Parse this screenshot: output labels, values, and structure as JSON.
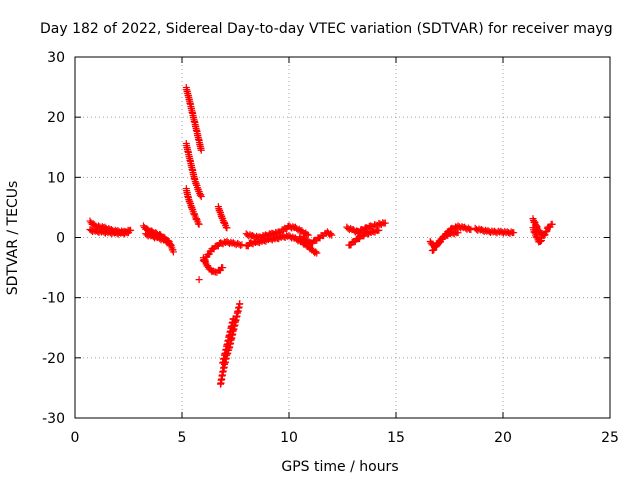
{
  "chart_data": {
    "type": "scatter",
    "title": "Day 182 of 2022, Sidereal Day-to-day VTEC variation (SDTVAR) for receiver mayg",
    "xlabel": "GPS time / hours",
    "ylabel": "SDTVAR / TECUs",
    "xlim": [
      0,
      25
    ],
    "ylim": [
      -30,
      30
    ],
    "xticks": [
      0,
      5,
      10,
      15,
      20,
      25
    ],
    "yticks": [
      -30,
      -20,
      -10,
      0,
      10,
      20,
      30
    ],
    "xtick_labels": [
      "0",
      "5",
      "10",
      "15",
      "20",
      "25"
    ],
    "ytick_labels": [
      "-30",
      "-20",
      "-10",
      "0",
      "10",
      "20",
      "30"
    ],
    "grid": true,
    "marker": "+",
    "color": "#ff0000",
    "segments": [
      {
        "name": "arc-0.7-2.6",
        "points": [
          [
            0.7,
            2.6
          ],
          [
            0.9,
            2.0
          ],
          [
            1.1,
            1.8
          ],
          [
            1.4,
            1.6
          ],
          [
            1.7,
            1.2
          ],
          [
            2.0,
            1.0
          ],
          [
            2.3,
            0.9
          ],
          [
            2.6,
            1.2
          ]
        ]
      },
      {
        "name": "arc-0.7-1.2",
        "points": [
          [
            0.7,
            1.2
          ],
          [
            1.0,
            1.0
          ],
          [
            1.3,
            0.9
          ],
          [
            1.6,
            0.8
          ],
          [
            1.9,
            0.7
          ],
          [
            2.2,
            0.7
          ],
          [
            2.5,
            0.8
          ]
        ]
      },
      {
        "name": "arc-3.2-1.8",
        "points": [
          [
            3.2,
            1.8
          ],
          [
            3.4,
            1.2
          ],
          [
            3.6,
            0.9
          ],
          [
            3.8,
            0.6
          ],
          [
            4.0,
            0.3
          ],
          [
            4.2,
            -0.2
          ],
          [
            4.4,
            -0.8
          ],
          [
            4.5,
            -1.5
          ],
          [
            4.6,
            -2.4
          ]
        ]
      },
      {
        "name": "arc-3.3-0.5",
        "points": [
          [
            3.3,
            0.5
          ],
          [
            3.6,
            0.2
          ],
          [
            3.9,
            -0.1
          ],
          [
            4.2,
            -0.5
          ],
          [
            4.4,
            -1.0
          ]
        ]
      },
      {
        "name": "arc-5.2-24.8",
        "points": [
          [
            5.2,
            24.8
          ],
          [
            5.3,
            23.5
          ],
          [
            5.4,
            22.0
          ],
          [
            5.5,
            20.5
          ],
          [
            5.6,
            19.0
          ],
          [
            5.7,
            17.5
          ],
          [
            5.8,
            16.0
          ],
          [
            5.9,
            14.5
          ]
        ]
      },
      {
        "name": "arc-5.2-15.5",
        "points": [
          [
            5.2,
            15.5
          ],
          [
            5.3,
            14.0
          ],
          [
            5.4,
            12.5
          ],
          [
            5.5,
            11.0
          ],
          [
            5.6,
            9.5
          ],
          [
            5.7,
            8.5
          ],
          [
            5.8,
            7.5
          ],
          [
            5.9,
            6.8
          ]
        ]
      },
      {
        "name": "arc-5.2-8.0",
        "points": [
          [
            5.2,
            8.0
          ],
          [
            5.3,
            6.5
          ],
          [
            5.4,
            5.5
          ],
          [
            5.5,
            4.5
          ],
          [
            5.6,
            3.6
          ],
          [
            5.7,
            2.8
          ],
          [
            5.8,
            2.2
          ]
        ]
      },
      {
        "name": "arc-6.7-5.0",
        "points": [
          [
            6.7,
            5.0
          ],
          [
            6.8,
            4.0
          ],
          [
            6.9,
            3.0
          ],
          [
            7.0,
            2.2
          ],
          [
            7.1,
            1.6
          ]
        ]
      },
      {
        "name": "arc-5.8-7.0",
        "points": [
          [
            5.8,
            -7.0
          ]
        ]
      },
      {
        "name": "arc-6.0-3.5",
        "points": [
          [
            6.0,
            -3.5
          ],
          [
            6.1,
            -4.2
          ],
          [
            6.2,
            -4.8
          ],
          [
            6.3,
            -5.3
          ],
          [
            6.5,
            -5.8
          ],
          [
            6.7,
            -5.6
          ],
          [
            6.9,
            -5.0
          ]
        ]
      },
      {
        "name": "arc-6.0-4.0",
        "points": [
          [
            6.0,
            -4.0
          ],
          [
            6.2,
            -3.0
          ],
          [
            6.4,
            -2.0
          ],
          [
            6.6,
            -1.5
          ],
          [
            6.8,
            -1.0
          ],
          [
            7.1,
            -0.8
          ],
          [
            7.4,
            -1.0
          ],
          [
            7.8,
            -1.2
          ]
        ]
      },
      {
        "name": "arc-6.8-24.5",
        "points": [
          [
            6.8,
            -24.5
          ],
          [
            6.9,
            -22.5
          ],
          [
            7.0,
            -21.0
          ],
          [
            7.1,
            -19.5
          ],
          [
            7.2,
            -18.5
          ],
          [
            7.3,
            -17.0
          ],
          [
            7.4,
            -15.5
          ],
          [
            7.5,
            -14.0
          ],
          [
            7.6,
            -12.5
          ],
          [
            7.7,
            -11.0
          ]
        ]
      },
      {
        "name": "arc-6.9-21.0",
        "points": [
          [
            6.9,
            -21.0
          ],
          [
            7.0,
            -19.5
          ],
          [
            7.1,
            -18.0
          ],
          [
            7.2,
            -16.5
          ],
          [
            7.3,
            -15.0
          ],
          [
            7.4,
            -13.5
          ]
        ]
      },
      {
        "name": "arc-8.0-0.5",
        "points": [
          [
            8.0,
            0.5
          ],
          [
            8.3,
            0.2
          ],
          [
            8.6,
            0.0
          ],
          [
            8.9,
            0.3
          ],
          [
            9.2,
            0.6
          ],
          [
            9.5,
            0.8
          ],
          [
            9.8,
            1.4
          ],
          [
            10.0,
            1.8
          ],
          [
            10.3,
            1.6
          ],
          [
            10.6,
            1.0
          ],
          [
            10.9,
            0.4
          ]
        ]
      },
      {
        "name": "arc-8.0-1.5",
        "points": [
          [
            8.0,
            -1.5
          ],
          [
            8.2,
            -1.0
          ],
          [
            8.5,
            -0.8
          ],
          [
            8.8,
            -0.6
          ],
          [
            9.1,
            -0.3
          ],
          [
            9.4,
            -0.2
          ],
          [
            9.7,
            0.1
          ],
          [
            10.0,
            0.2
          ],
          [
            10.3,
            -0.2
          ],
          [
            10.6,
            -0.8
          ],
          [
            10.9,
            -1.5
          ],
          [
            11.1,
            -2.2
          ],
          [
            11.3,
            -2.6
          ]
        ]
      },
      {
        "name": "arc-10.5-0.0",
        "points": [
          [
            10.5,
            0.0
          ],
          [
            10.8,
            -0.5
          ],
          [
            11.0,
            -1.0
          ],
          [
            11.2,
            -0.6
          ],
          [
            11.5,
            0.2
          ],
          [
            11.8,
            0.8
          ],
          [
            12.0,
            0.4
          ]
        ]
      },
      {
        "name": "arc-12.7-1.6",
        "points": [
          [
            12.7,
            1.6
          ],
          [
            13.0,
            1.2
          ],
          [
            13.2,
            0.9
          ],
          [
            13.4,
            1.2
          ],
          [
            13.6,
            1.5
          ],
          [
            13.8,
            1.8
          ],
          [
            14.0,
            2.0
          ],
          [
            14.2,
            2.2
          ],
          [
            14.5,
            2.4
          ]
        ]
      },
      {
        "name": "arc-12.8-1.4",
        "points": [
          [
            12.8,
            -1.4
          ],
          [
            13.0,
            -0.8
          ],
          [
            13.2,
            -0.3
          ],
          [
            13.4,
            0.2
          ],
          [
            13.6,
            0.6
          ],
          [
            13.9,
            0.9
          ],
          [
            14.2,
            1.2
          ]
        ]
      },
      {
        "name": "arc-16.6-0.8",
        "points": [
          [
            16.6,
            -0.8
          ],
          [
            16.8,
            -1.5
          ],
          [
            17.0,
            -1.0
          ],
          [
            17.2,
            0.0
          ],
          [
            17.4,
            0.8
          ],
          [
            17.6,
            1.4
          ],
          [
            17.9,
            1.8
          ],
          [
            18.2,
            1.6
          ],
          [
            18.5,
            1.3
          ]
        ]
      },
      {
        "name": "arc-16.7-2.3",
        "points": [
          [
            16.7,
            -2.3
          ],
          [
            16.9,
            -1.2
          ],
          [
            17.1,
            -0.4
          ],
          [
            17.3,
            0.3
          ],
          [
            17.6,
            0.7
          ],
          [
            17.9,
            0.8
          ]
        ]
      },
      {
        "name": "arc-18.7-1.4",
        "points": [
          [
            18.7,
            1.4
          ],
          [
            19.0,
            1.2
          ],
          [
            19.3,
            1.0
          ],
          [
            19.6,
            0.9
          ],
          [
            19.9,
            0.9
          ],
          [
            20.2,
            0.8
          ],
          [
            20.5,
            0.8
          ]
        ]
      },
      {
        "name": "arc-21.4-3.0",
        "points": [
          [
            21.4,
            3.0
          ],
          [
            21.5,
            2.3
          ],
          [
            21.6,
            1.6
          ],
          [
            21.7,
            1.0
          ],
          [
            21.8,
            0.5
          ],
          [
            21.9,
            0.2
          ],
          [
            22.0,
            0.8
          ],
          [
            22.1,
            1.6
          ],
          [
            22.3,
            2.2
          ]
        ]
      },
      {
        "name": "arc-21.4-1.5",
        "points": [
          [
            21.4,
            1.5
          ],
          [
            21.5,
            0.6
          ],
          [
            21.6,
            -0.2
          ],
          [
            21.7,
            -0.8
          ],
          [
            21.8,
            -0.5
          ]
        ]
      }
    ]
  }
}
